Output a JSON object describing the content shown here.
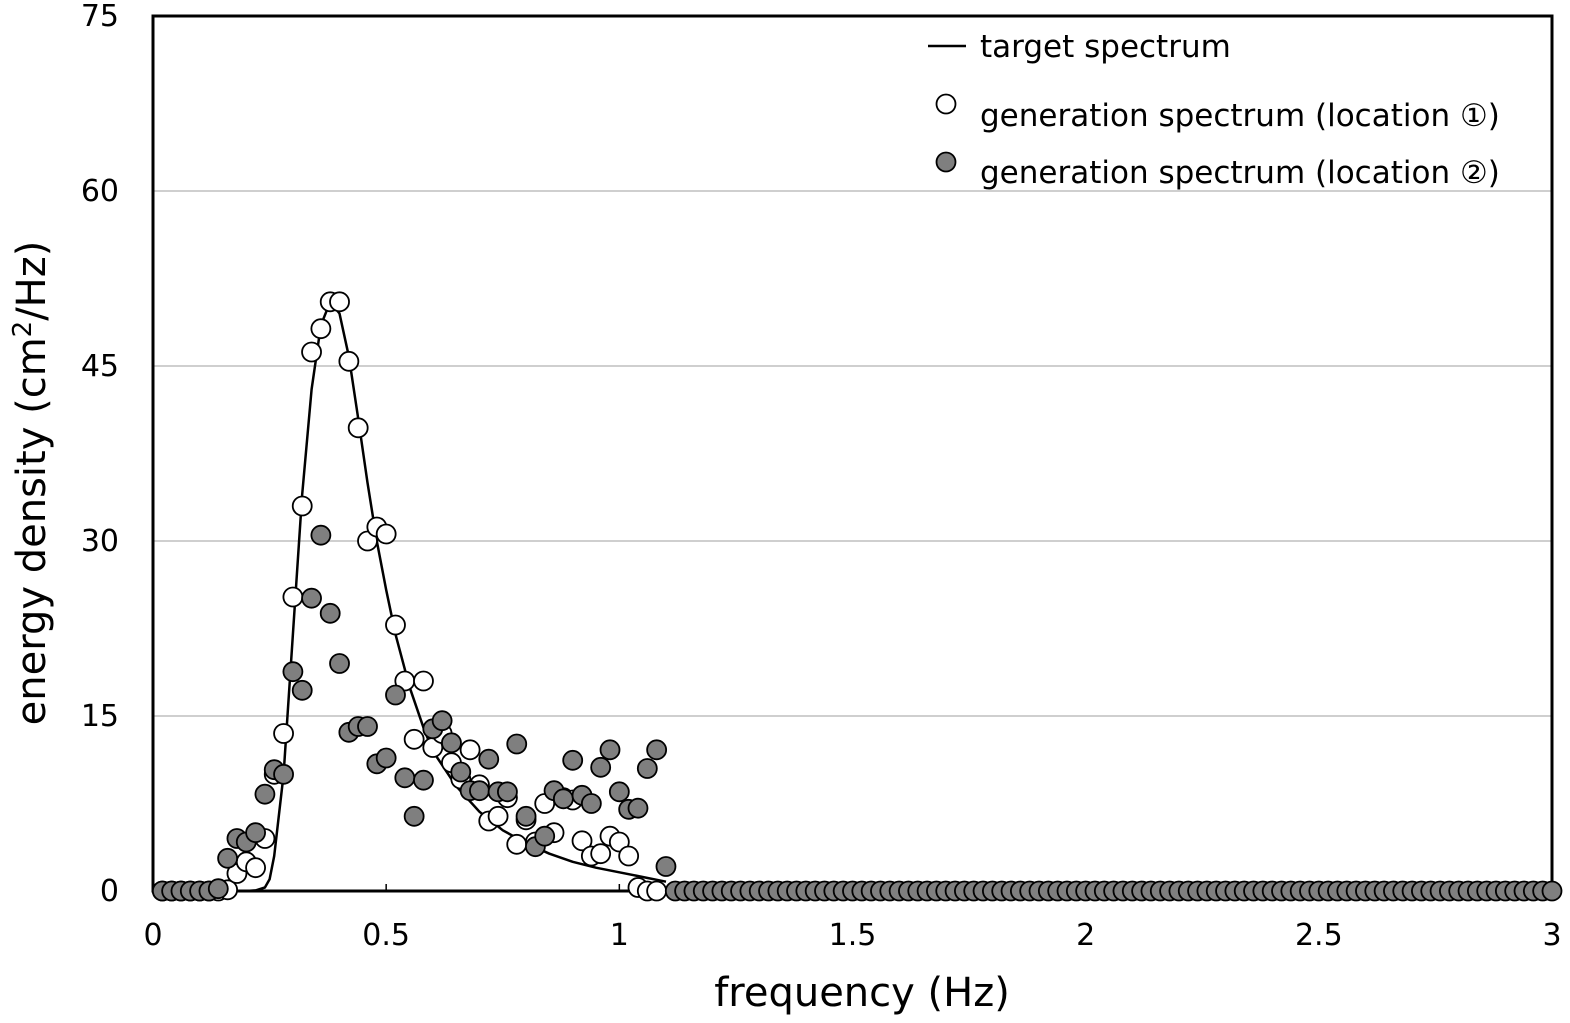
{
  "chart_data": {
    "type": "scatter",
    "title": "",
    "xlabel": "frequency (Hz)",
    "ylabel_main": "energy density (cm",
    "ylabel_sup": "2",
    "ylabel_tail": "/Hz)",
    "xlim": [
      0,
      3
    ],
    "ylim": [
      0,
      75
    ],
    "xticks": [
      0,
      0.5,
      1,
      1.5,
      2,
      2.5,
      3
    ],
    "xtick_labels": [
      "0",
      "0.5",
      "1",
      "1.5",
      "2",
      "2.5",
      "3"
    ],
    "yticks": [
      0,
      15,
      30,
      45,
      60,
      75
    ],
    "ytick_labels": [
      "0",
      "15",
      "30",
      "45",
      "60",
      "75"
    ],
    "grid": "horizontal",
    "legend_position": "top-right",
    "colors": {
      "line": "#000000",
      "open_marker_fill": "#ffffff",
      "filled_marker_fill": "#7f7f7f",
      "marker_edge": "#000000",
      "grid": "#bfbfbf"
    },
    "series": [
      {
        "name": "target spectrum",
        "kind": "line",
        "x": [
          0.2,
          0.22,
          0.24,
          0.25,
          0.26,
          0.28,
          0.3,
          0.32,
          0.34,
          0.36,
          0.38,
          0.4,
          0.42,
          0.44,
          0.46,
          0.48,
          0.5,
          0.52,
          0.55,
          0.58,
          0.6,
          0.65,
          0.7,
          0.75,
          0.8,
          0.85,
          0.9,
          0.95,
          1.0,
          1.05,
          1.1
        ],
        "y": [
          0.0,
          0.05,
          0.3,
          1.0,
          3.0,
          10.0,
          22.0,
          34.0,
          43.0,
          48.5,
          50.5,
          49.5,
          45.8,
          40.5,
          35.0,
          30.0,
          25.8,
          22.0,
          17.5,
          14.0,
          12.0,
          9.0,
          6.8,
          5.2,
          4.1,
          3.2,
          2.5,
          2.0,
          1.6,
          1.2,
          0.8
        ]
      },
      {
        "name": "generation spectrum (location ①)",
        "kind": "open",
        "x": [
          0.02,
          0.04,
          0.06,
          0.08,
          0.1,
          0.12,
          0.14,
          0.16,
          0.18,
          0.2,
          0.22,
          0.24,
          0.26,
          0.28,
          0.3,
          0.32,
          0.34,
          0.36,
          0.38,
          0.4,
          0.42,
          0.44,
          0.46,
          0.48,
          0.5,
          0.52,
          0.54,
          0.56,
          0.58,
          0.6,
          0.62,
          0.64,
          0.66,
          0.68,
          0.7,
          0.72,
          0.74,
          0.76,
          0.78,
          0.8,
          0.82,
          0.84,
          0.86,
          0.88,
          0.9,
          0.92,
          0.94,
          0.96,
          0.98,
          1.0,
          1.02,
          1.04,
          1.06,
          1.08
        ],
        "y": [
          0,
          0,
          0,
          0,
          0,
          0,
          0,
          0.1,
          1.5,
          2.5,
          2.0,
          4.5,
          10.0,
          13.5,
          25.2,
          33.0,
          46.2,
          48.2,
          50.5,
          50.5,
          45.4,
          39.7,
          30.0,
          31.2,
          30.6,
          22.8,
          18.0,
          13.0,
          18.0,
          12.3,
          13.5,
          11.0,
          9.6,
          12.1,
          9.1,
          6.0,
          6.4,
          8.0,
          4.0,
          6.1,
          4.2,
          7.5,
          5.0,
          8.0,
          7.8,
          4.3,
          3.0,
          3.2,
          4.7,
          4.2,
          3.0,
          0.3,
          0.0,
          0.0
        ]
      },
      {
        "name": "generation spectrum (location ②)",
        "kind": "filled",
        "x": [
          0.02,
          0.04,
          0.06,
          0.08,
          0.1,
          0.12,
          0.14,
          0.16,
          0.18,
          0.2,
          0.22,
          0.24,
          0.26,
          0.28,
          0.3,
          0.32,
          0.34,
          0.36,
          0.38,
          0.4,
          0.42,
          0.44,
          0.46,
          0.48,
          0.5,
          0.52,
          0.54,
          0.56,
          0.58,
          0.6,
          0.62,
          0.64,
          0.66,
          0.68,
          0.7,
          0.72,
          0.74,
          0.76,
          0.78,
          0.8,
          0.82,
          0.84,
          0.86,
          0.88,
          0.9,
          0.92,
          0.94,
          0.96,
          0.98,
          1.0,
          1.02,
          1.04,
          1.06,
          1.08,
          1.1
        ],
        "y": [
          0,
          0,
          0,
          0,
          0,
          0,
          0.2,
          2.8,
          4.5,
          4.2,
          5.0,
          8.3,
          10.4,
          10.0,
          18.8,
          17.2,
          25.1,
          30.5,
          23.8,
          19.5,
          13.6,
          14.1,
          14.1,
          10.9,
          11.4,
          16.8,
          9.7,
          6.4,
          9.5,
          13.9,
          14.6,
          12.7,
          10.2,
          8.6,
          8.6,
          11.3,
          8.5,
          8.5,
          12.6,
          6.4,
          3.8,
          4.7,
          8.6,
          7.9,
          11.2,
          8.2,
          7.5,
          10.6,
          12.1,
          8.5,
          7.0,
          7.1,
          10.5,
          12.1,
          2.1
        ],
        "zero_tail_x_start": 1.12,
        "zero_tail_x_end": 3.0,
        "zero_tail_step": 0.02
      }
    ]
  }
}
